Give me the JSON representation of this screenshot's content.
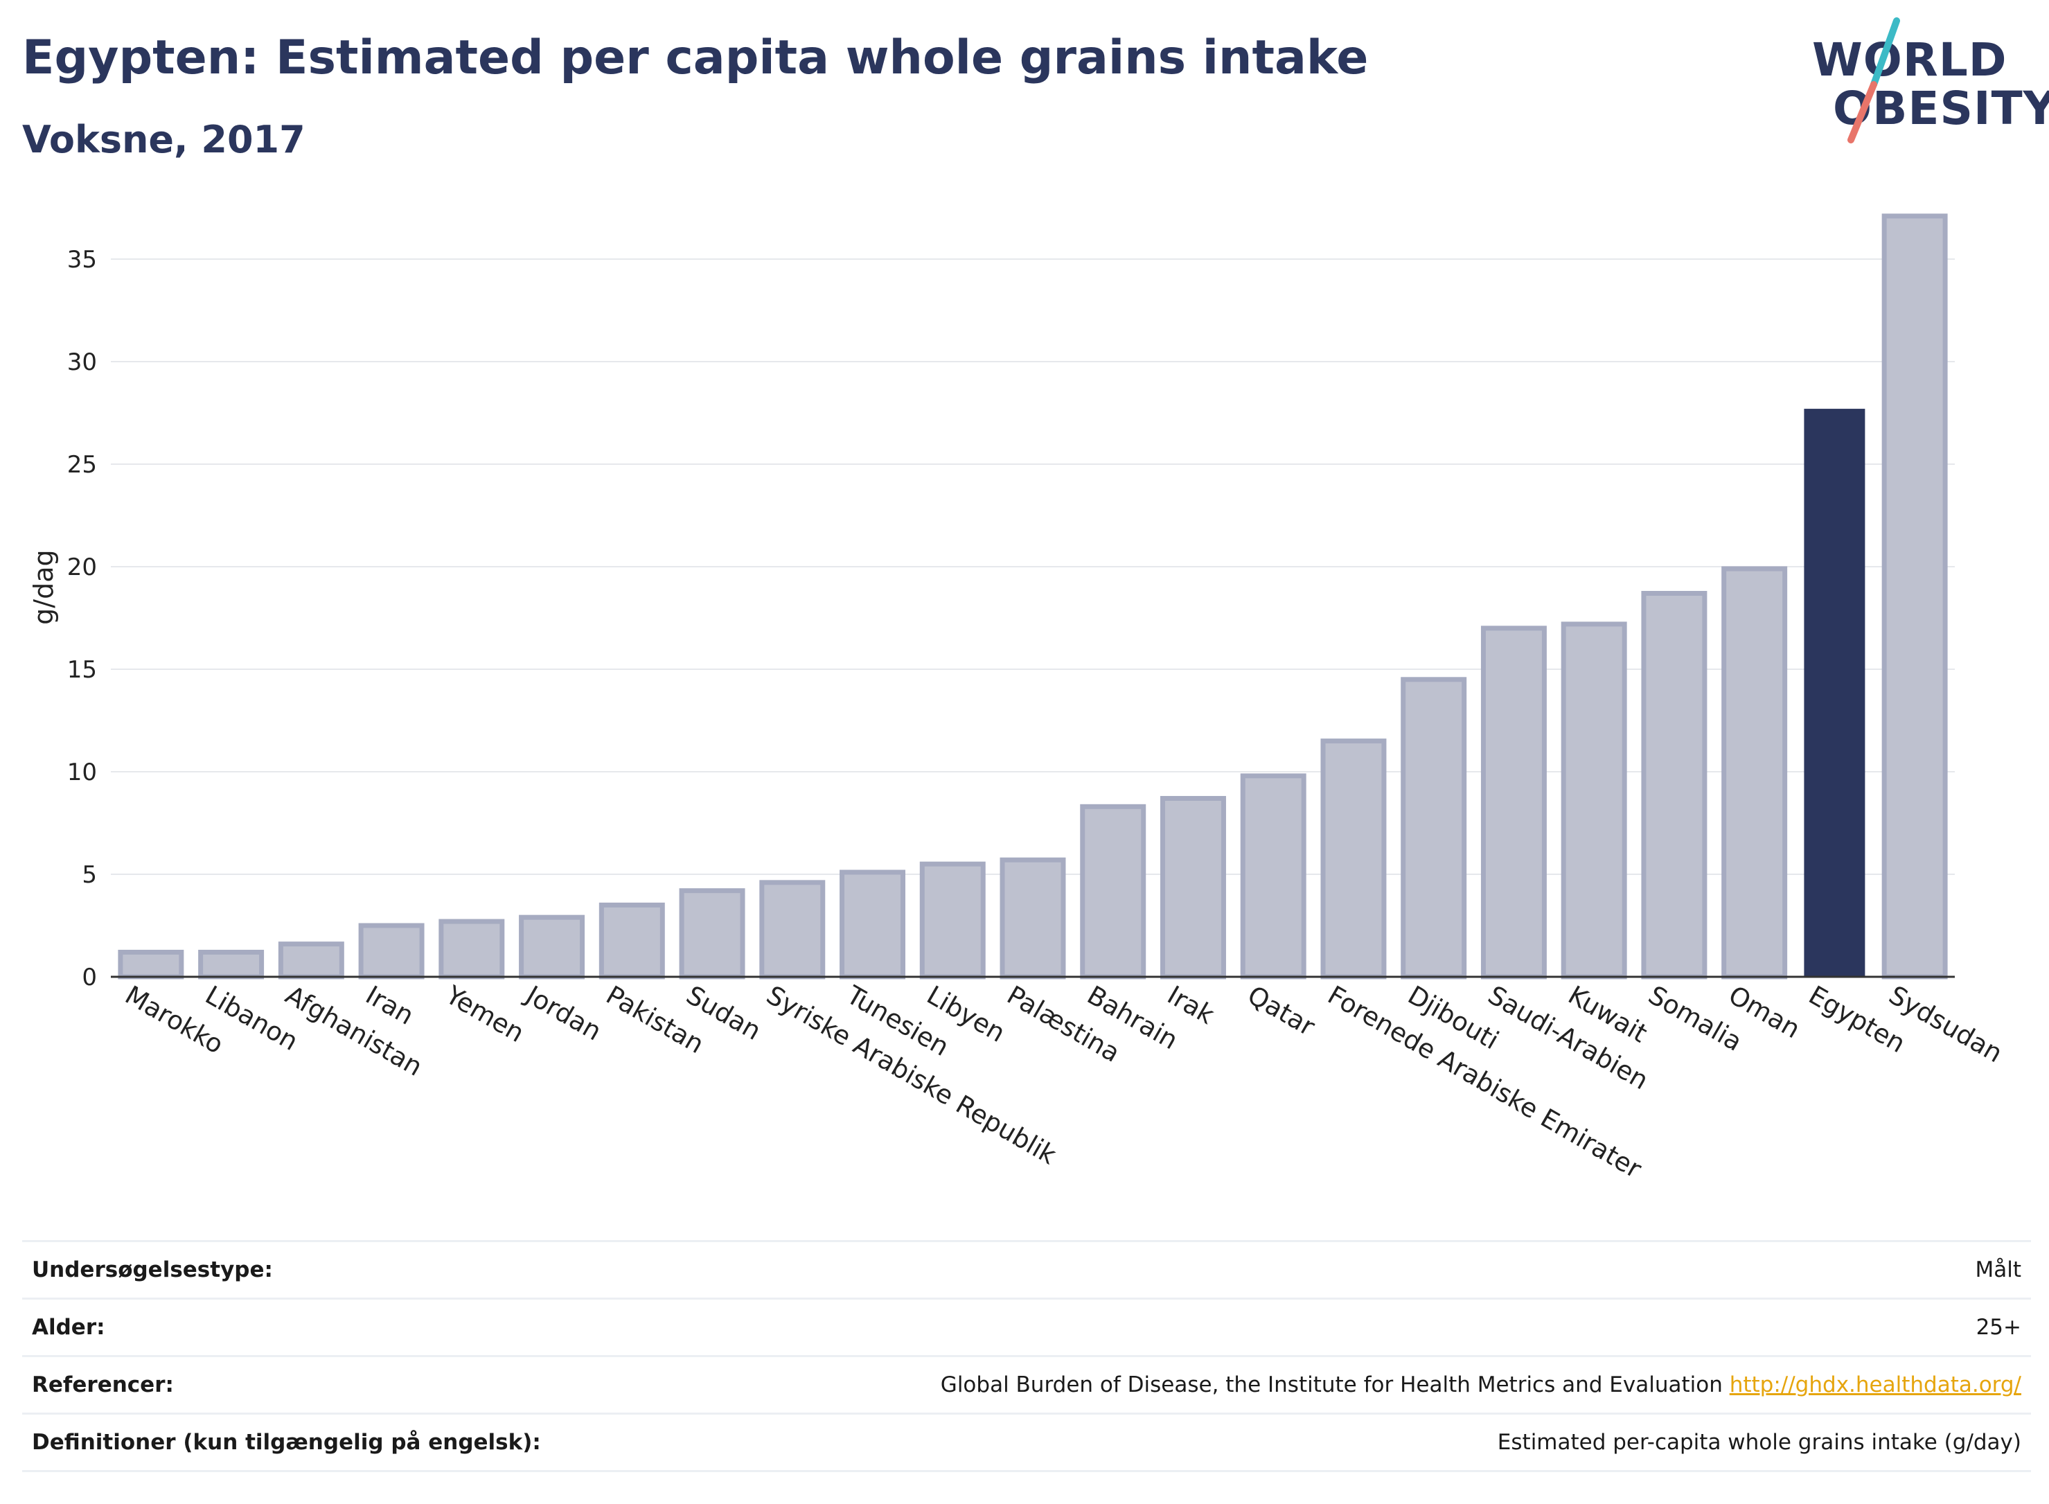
{
  "header": {
    "title": "Egypten: Estimated per capita whole grains intake",
    "subtitle": "Voksne, 2017"
  },
  "logo": {
    "line1": "WORLD",
    "line2": "OBESITY",
    "colors": {
      "text": "#2b365d",
      "slash_top": "#3cbac6",
      "slash_bottom": "#e8756a"
    }
  },
  "chart_data": {
    "type": "bar",
    "title": "Egypten: Estimated per capita whole grains intake",
    "subtitle": "Voksne, 2017",
    "xlabel": "",
    "ylabel": "g/dag",
    "ylim": [
      0,
      37.5
    ],
    "yticks": [
      0,
      5,
      10,
      15,
      20,
      25,
      30,
      35
    ],
    "grid": true,
    "highlight": "Egypten",
    "colors": {
      "bar": "#bec1cf",
      "bar_border": "#a6abc1",
      "highlight": "#2b365d",
      "grid": "#e6e8ec",
      "axis": "#333333"
    },
    "categories": [
      "Marokko",
      "Libanon",
      "Afghanistan",
      "Iran",
      "Yemen",
      "Jordan",
      "Pakistan",
      "Sudan",
      "Syriske Arabiske Republik",
      "Tunesien",
      "Libyen",
      "Palæstina",
      "Bahrain",
      "Irak",
      "Qatar",
      "Forenede Arabiske Emirater",
      "Djibouti",
      "Saudi-Arabien",
      "Kuwait",
      "Somalia",
      "Oman",
      "Egypten",
      "Sydsudan"
    ],
    "values": [
      1.2,
      1.2,
      1.6,
      2.5,
      2.7,
      2.9,
      3.5,
      4.2,
      4.6,
      5.1,
      5.5,
      5.7,
      8.3,
      8.7,
      9.8,
      11.5,
      14.5,
      17.0,
      17.2,
      18.7,
      19.9,
      27.7,
      37.1
    ]
  },
  "info": {
    "rows": [
      {
        "key": "Undersøgelsestype:",
        "value": "Målt"
      },
      {
        "key": "Alder:",
        "value": "25+"
      },
      {
        "key": "Referencer:",
        "value": "Global Burden of Disease, the Institute for Health Metrics and Evaluation",
        "link": "http://ghdx.healthdata.org/"
      },
      {
        "key": "Definitioner (kun tilgængelig på engelsk):",
        "value": "Estimated per-capita whole grains intake (g/day)"
      }
    ]
  }
}
